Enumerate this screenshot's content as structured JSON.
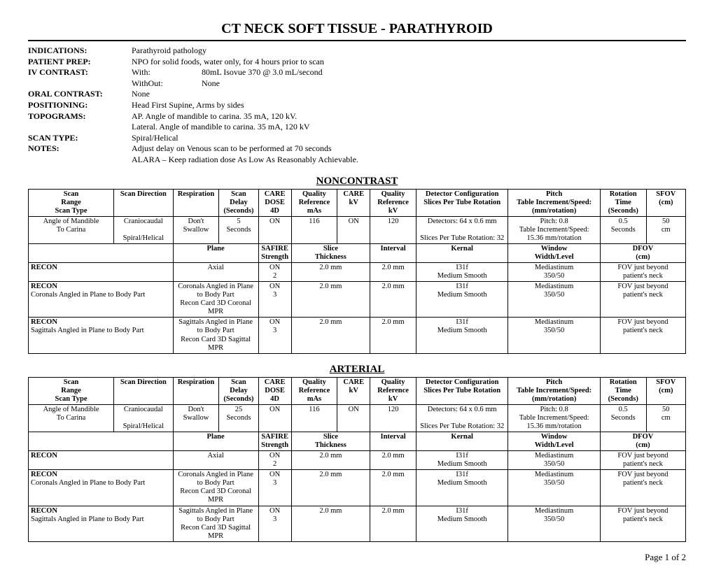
{
  "title": "CT NECK SOFT TISSUE - PARATHYROID",
  "info": {
    "indications": {
      "label": "INDICATIONS:",
      "value": "Parathyroid pathology"
    },
    "patientPrep": {
      "label": "PATIENT PREP:",
      "value": "NPO for solid foods, water only, for 4 hours prior to scan"
    },
    "ivContrast": {
      "label": "IV CONTRAST:",
      "withLabel": "With:",
      "withValue": "80mL Isovue 370 @ 3.0 mL/second",
      "withoutLabel": "WithOut:",
      "withoutValue": "None"
    },
    "oralContrast": {
      "label": "ORAL CONTRAST:",
      "value": "None"
    },
    "positioning": {
      "label": "POSITIONING:",
      "value": "Head First Supine, Arms by sides"
    },
    "topograms": {
      "label": "TOPOGRAMS:",
      "line1": "AP.  Angle of mandible to carina.  35 mA, 120 kV.",
      "line2": "Lateral.  Angle of mandible to carina.  35 mA, 120 kV"
    },
    "scanType": {
      "label": "SCAN TYPE:",
      "value": "Spiral/Helical"
    },
    "notes": {
      "label": "NOTES:",
      "line1": "Adjust delay on Venous scan to be performed at 70 seconds",
      "line2": "ALARA – Keep radiation dose As Low As Reasonably Achievable."
    }
  },
  "headers": {
    "scanRange": "Scan Range",
    "scanDirection": "Scan Direction",
    "scanType": "Scan Type",
    "respiration": "Respiration",
    "scanDelay": "Scan Delay",
    "seconds": "(Seconds)",
    "careDose": "CARE DOSE",
    "4d": "4D",
    "qualityRef": "Quality Reference",
    "mAs": "mAs",
    "careKv": "CARE kV",
    "kV": "kV",
    "detector": "Detector Configuration",
    "slicesPerTube": "Slices Per Tube Rotation",
    "pitch": "Pitch",
    "tableIncrement": "Table Increment/Speed:",
    "mmRotation": "(mm/rotation)",
    "rotationTime": "Rotation Time",
    "sfov": "SFOV",
    "cm": "(cm)",
    "plane": "Plane",
    "safire": "SAFIRE",
    "strength": "Strength",
    "sliceThickness": "Slice Thickness",
    "interval": "Interval",
    "kernal": "Kernal",
    "window": "Window",
    "widthLevel": "Width/Level",
    "dfov": "DFOV"
  },
  "sections": [
    {
      "heading": "NONCONTRAST",
      "scan": {
        "range": "Angle of Mandible To Carina",
        "direction": "Craniocaudal",
        "scanType": "Spiral/Helical",
        "respiration": "Don't Swallow",
        "delay": "5 Seconds",
        "careDose": "ON",
        "mAs": "116",
        "careKv": "ON",
        "kV": "120",
        "detector": "Detectors: 64 x 0.6 mm",
        "slices": "Slices Per Tube Rotation: 32",
        "pitch": "Pitch:  0.8",
        "tableInc": "Table Increment/Speed: 15.36 mm/rotation",
        "rotation": "0.5 Seconds",
        "sfov": "50 cm"
      },
      "recons": [
        {
          "label": "RECON",
          "sub": "",
          "plane": "Axial",
          "safire": "ON",
          "strength": "2",
          "thickness": "2.0 mm",
          "interval": "2.0 mm",
          "kernal": "I31f",
          "kernalSub": "Medium Smooth",
          "window": "Mediastinum",
          "wl": "350/50",
          "dfov": "FOV just beyond patient's neck"
        },
        {
          "label": "RECON",
          "sub": "Coronals Angled in Plane to Body Part",
          "plane": "Coronals Angled in Plane to Body Part",
          "planeSub": "Recon Card 3D Coronal MPR",
          "safire": "ON",
          "strength": "3",
          "thickness": "2.0 mm",
          "interval": "2.0 mm",
          "kernal": "I31f",
          "kernalSub": "Medium Smooth",
          "window": "Mediastinum",
          "wl": "350/50",
          "dfov": "FOV just beyond patient's neck"
        },
        {
          "label": "RECON",
          "sub": "Sagittals Angled in Plane to Body Part",
          "plane": "Sagittals Angled in Plane to Body Part",
          "planeSub": "Recon Card 3D Sagittal MPR",
          "safire": "ON",
          "strength": "3",
          "thickness": "2.0 mm",
          "interval": "2.0 mm",
          "kernal": "I31f",
          "kernalSub": "Medium Smooth",
          "window": "Mediastinum",
          "wl": "350/50",
          "dfov": "FOV just beyond patient's neck"
        }
      ]
    },
    {
      "heading": "ARTERIAL",
      "scan": {
        "range": "Angle of Mandible To Carina",
        "direction": "Craniocaudal",
        "scanType": "Spiral/Helical",
        "respiration": "Don't Swallow",
        "delay": "25 Seconds",
        "careDose": "ON",
        "mAs": "116",
        "careKv": "ON",
        "kV": "120",
        "detector": "Detectors: 64 x 0.6 mm",
        "slices": "Slices Per Tube Rotation: 32",
        "pitch": "Pitch:  0.8",
        "tableInc": "Table Increment/Speed: 15.36 mm/rotation",
        "rotation": "0.5 Seconds",
        "sfov": "50 cm"
      },
      "recons": [
        {
          "label": "RECON",
          "sub": "",
          "plane": "Axial",
          "safire": "ON",
          "strength": "2",
          "thickness": "2.0 mm",
          "interval": "2.0 mm",
          "kernal": "I31f",
          "kernalSub": "Medium Smooth",
          "window": "Mediastinum",
          "wl": "350/50",
          "dfov": "FOV just beyond patient's neck"
        },
        {
          "label": "RECON",
          "sub": "Coronals Angled in Plane to Body Part",
          "plane": "Coronals Angled in Plane to Body Part",
          "planeSub": "Recon Card 3D Coronal MPR",
          "safire": "ON",
          "strength": "3",
          "thickness": "2.0 mm",
          "interval": "2.0 mm",
          "kernal": "I31f",
          "kernalSub": "Medium Smooth",
          "window": "Mediastinum",
          "wl": "350/50",
          "dfov": "FOV just beyond patient's neck"
        },
        {
          "label": "RECON",
          "sub": "Sagittals Angled in Plane to Body Part",
          "plane": "Sagittals Angled in Plane to Body Part",
          "planeSub": "Recon Card 3D Sagittal MPR",
          "safire": "ON",
          "strength": "3",
          "thickness": "2.0 mm",
          "interval": "2.0 mm",
          "kernal": "I31f",
          "kernalSub": "Medium Smooth",
          "window": "Mediastinum",
          "wl": "350/50",
          "dfov": "FOV just beyond patient's neck"
        }
      ]
    }
  ],
  "pageNum": "Page 1 of 2"
}
